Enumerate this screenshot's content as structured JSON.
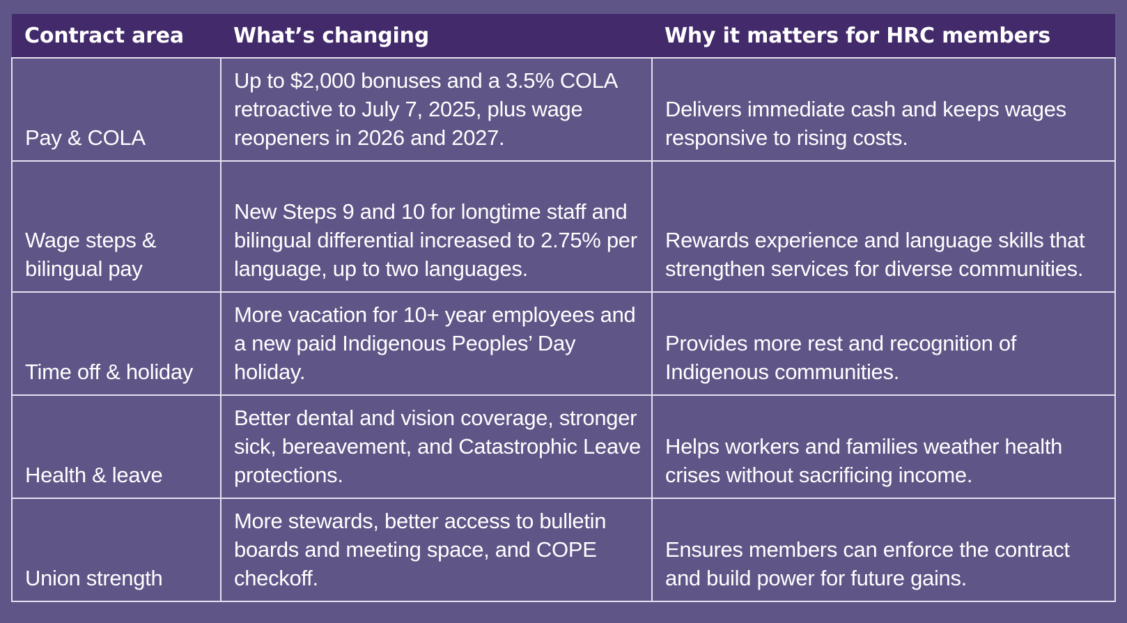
{
  "header": {
    "col1": "Contract area",
    "col2": "What’s changing",
    "col3": "Why it matters for HRC members"
  },
  "rows": [
    {
      "area": "Pay & COLA",
      "change": "Up to $2,000 bonuses and a 3.5% COLA retroactive to July 7, 2025, plus wage reopeners in 2026 and 2027.",
      "why": "Delivers immediate cash and keeps wages responsive to rising costs."
    },
    {
      "area": "Wage steps & bilingual pay",
      "change": "New Steps 9 and 10 for longtime staff and bilingual differential increased to 2.75% per language, up to two languages.",
      "why": "Rewards experience and language skills that strengthen services for diverse communities."
    },
    {
      "area": "Time off & holiday",
      "change": "More vacation for 10+ year employees and a new paid Indigenous Peoples’ Day holiday.",
      "why": "Provides more rest and recognition of Indigenous communities."
    },
    {
      "area": "Health & leave",
      "change": "Better dental and vision coverage, stronger sick, bereavement, and Catastrophic Leave protections.",
      "why": "Helps workers and families weather health crises without sacrificing income."
    },
    {
      "area": "Union strength",
      "change": "More stewards, better access to bulletin boards and meeting space, and COPE checkoff.",
      "why": "Ensures members can enforce the contract and build power for future gains."
    }
  ],
  "colors": {
    "background": "#5f5587",
    "header_background": "#422a6b",
    "border": "#e6e2f0",
    "text": "#ffffff"
  }
}
